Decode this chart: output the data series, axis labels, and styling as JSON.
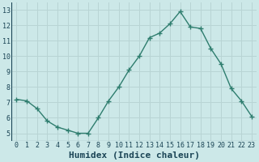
{
  "xlabel": "Humidex (Indice chaleur)",
  "x": [
    0,
    1,
    2,
    3,
    4,
    5,
    6,
    7,
    8,
    9,
    10,
    11,
    12,
    13,
    14,
    15,
    16,
    17,
    18,
    19,
    20,
    21,
    22,
    23
  ],
  "y": [
    7.2,
    7.1,
    6.6,
    5.8,
    5.4,
    5.2,
    5.0,
    5.0,
    6.0,
    7.1,
    8.0,
    9.1,
    10.0,
    11.2,
    11.5,
    12.1,
    12.9,
    11.9,
    11.8,
    10.5,
    9.5,
    7.9,
    7.1,
    6.1
  ],
  "line_color": "#2e7d6e",
  "marker": "+",
  "marker_size": 4,
  "marker_lw": 1.0,
  "line_width": 1.0,
  "bg_color": "#cce8e8",
  "grid_color": "#b8d4d4",
  "axis_bg": "#cce8e8",
  "xlim": [
    -0.5,
    23.5
  ],
  "ylim": [
    4.5,
    13.5
  ],
  "yticks": [
    5,
    6,
    7,
    8,
    9,
    10,
    11,
    12,
    13
  ],
  "xticks": [
    0,
    1,
    2,
    3,
    4,
    5,
    6,
    7,
    8,
    9,
    10,
    11,
    12,
    13,
    14,
    15,
    16,
    17,
    18,
    19,
    20,
    21,
    22,
    23
  ],
  "tick_label_color": "#1a4455",
  "axis_label_color": "#1a4455",
  "tick_fontsize": 6,
  "xlabel_fontsize": 8
}
